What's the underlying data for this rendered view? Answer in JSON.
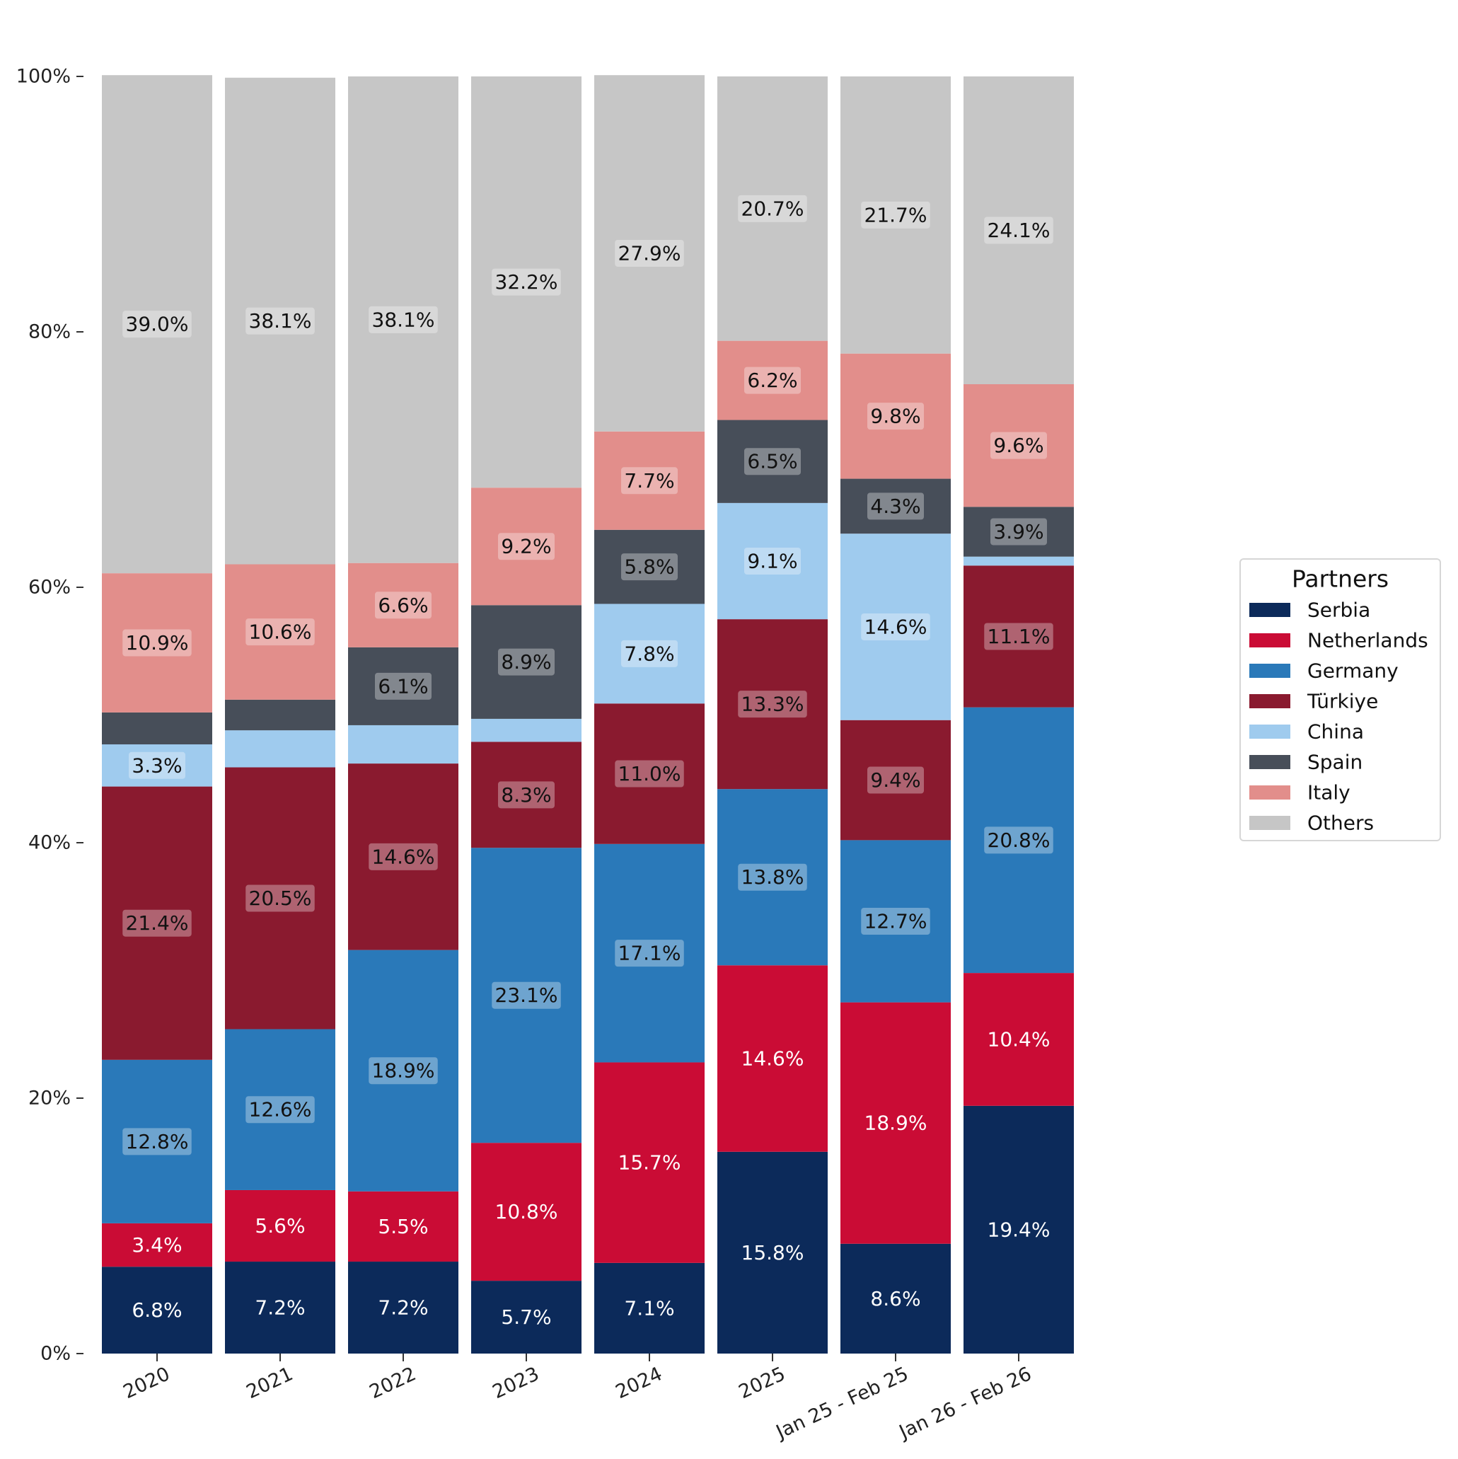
{
  "chart_data": {
    "type": "bar",
    "stacked": true,
    "categories": [
      "2020",
      "2021",
      "2022",
      "2023",
      "2024",
      "2025",
      "Jan 25 - Feb 25",
      "Jan 26 - Feb 26"
    ],
    "ylim": [
      0,
      100
    ],
    "yticks": [
      0,
      20,
      40,
      60,
      80,
      100
    ],
    "ytick_labels": [
      "0%",
      "20%",
      "40%",
      "60%",
      "80%",
      "100%"
    ],
    "grid": false,
    "legend": {
      "title": "Partners",
      "placement": "right"
    },
    "series": [
      {
        "name": "Serbia",
        "color": "#0c2a5a",
        "label_color": "#ffffff",
        "values": [
          6.8,
          7.2,
          7.2,
          5.7,
          7.1,
          15.8,
          8.6,
          19.4
        ],
        "labels": [
          "6.8%",
          "7.2%",
          "7.2%",
          "5.7%",
          "7.1%",
          "15.8%",
          "8.6%",
          "19.4%"
        ]
      },
      {
        "name": "Netherlands",
        "color": "#ca0c35",
        "label_color": "#ffffff",
        "values": [
          3.4,
          5.6,
          5.5,
          10.8,
          15.7,
          14.6,
          18.9,
          10.4
        ],
        "labels": [
          "3.4%",
          "5.6%",
          "5.5%",
          "10.8%",
          "15.7%",
          "14.6%",
          "18.9%",
          "10.4%"
        ]
      },
      {
        "name": "Germany",
        "color": "#2a79b9",
        "label_color": "#111111",
        "values": [
          12.8,
          12.6,
          18.9,
          23.1,
          17.1,
          13.8,
          12.7,
          20.8
        ],
        "labels": [
          "12.8%",
          "12.6%",
          "18.9%",
          "23.1%",
          "17.1%",
          "13.8%",
          "12.7%",
          "20.8%"
        ]
      },
      {
        "name": "Türkiye",
        "color": "#8a1a2f",
        "label_color": "#111111",
        "values": [
          21.4,
          20.5,
          14.6,
          8.3,
          11.0,
          13.3,
          9.4,
          11.1
        ],
        "labels": [
          "21.4%",
          "20.5%",
          "14.6%",
          "8.3%",
          "11.0%",
          "13.3%",
          "9.4%",
          "11.1%"
        ]
      },
      {
        "name": "China",
        "color": "#9fcbee",
        "label_color": "#111111",
        "values": [
          3.3,
          2.9,
          3.0,
          1.8,
          7.8,
          9.1,
          14.6,
          0.7
        ],
        "labels": [
          "3.3%",
          "",
          "",
          "",
          "7.8%",
          "9.1%",
          "14.6%",
          ""
        ]
      },
      {
        "name": "Spain",
        "color": "#474e59",
        "label_color": "#111111",
        "values": [
          2.5,
          2.4,
          6.1,
          8.9,
          5.8,
          6.5,
          4.3,
          3.9
        ],
        "labels": [
          "",
          "",
          "6.1%",
          "8.9%",
          "5.8%",
          "6.5%",
          "4.3%",
          "3.9%"
        ]
      },
      {
        "name": "Italy",
        "color": "#e28e8b",
        "label_color": "#111111",
        "values": [
          10.9,
          10.6,
          6.6,
          9.2,
          7.7,
          6.2,
          9.8,
          9.6
        ],
        "labels": [
          "10.9%",
          "10.6%",
          "6.6%",
          "9.2%",
          "7.7%",
          "6.2%",
          "9.8%",
          "9.6%"
        ]
      },
      {
        "name": "Others",
        "color": "#c6c6c6",
        "label_color": "#111111",
        "values": [
          39.0,
          38.1,
          38.1,
          32.2,
          27.9,
          20.7,
          21.7,
          24.1
        ],
        "labels": [
          "39.0%",
          "38.1%",
          "38.1%",
          "32.2%",
          "27.9%",
          "20.7%",
          "21.7%",
          "24.1%"
        ]
      }
    ]
  }
}
